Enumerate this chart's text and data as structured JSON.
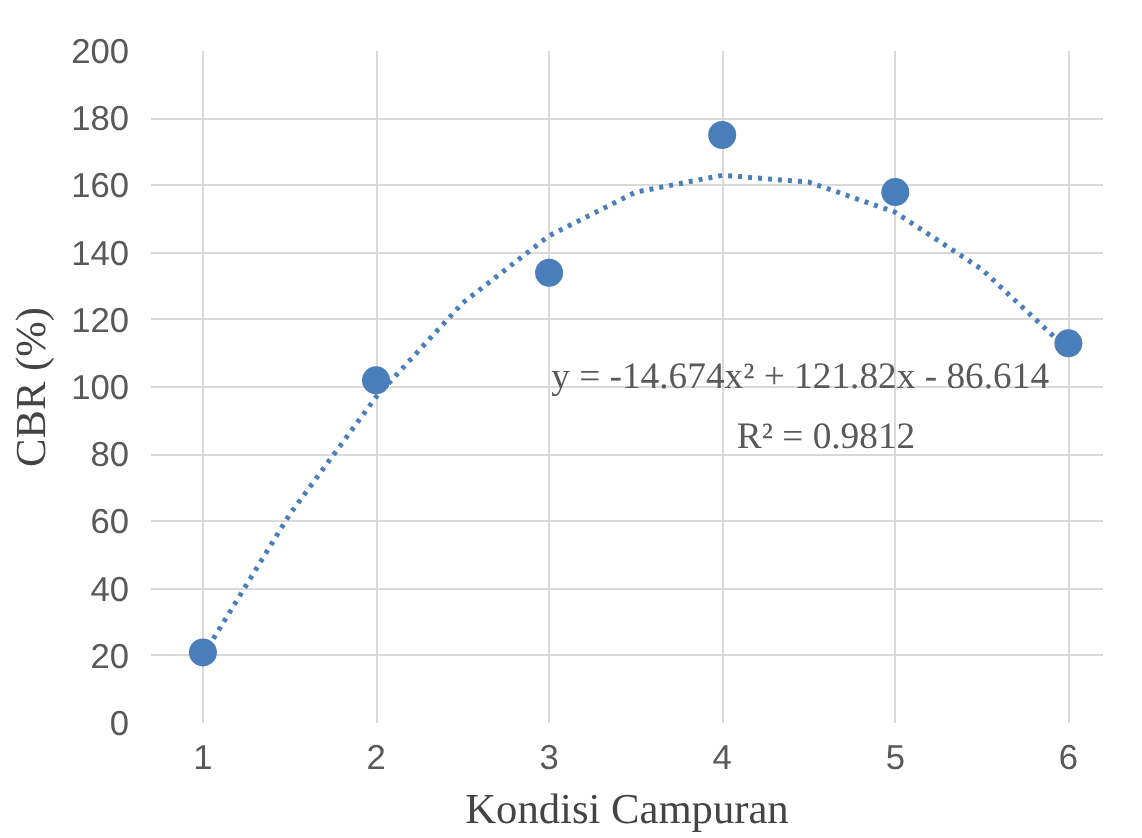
{
  "chart_data": {
    "type": "scatter",
    "xlabel": "Kondisi Campuran",
    "ylabel": "CBR (%)",
    "x": [
      1,
      2,
      3,
      4,
      5,
      6
    ],
    "series": [
      {
        "color": "#4a7ebb",
        "values": [
          21,
          102,
          134,
          175,
          158,
          113
        ],
        "marker": "circle"
      },
      {
        "type": "line",
        "color": "#4a7ebb",
        "line_style": "dotted",
        "marker": "none",
        "x": [
          1,
          1.5,
          2,
          2.5,
          3,
          3.5,
          4,
          4.5,
          5,
          5.5,
          6
        ],
        "values": [
          20,
          62,
          97,
          125,
          145,
          158,
          163,
          161,
          152,
          135,
          111
        ]
      }
    ],
    "annotations": [
      "y = -14.674x² + 121.82x - 86.614",
      "R² = 0.9812"
    ],
    "xlim": [
      0.7,
      6.2
    ],
    "xticks": [
      1,
      2,
      3,
      4,
      5,
      6
    ],
    "ylim": [
      0,
      200
    ],
    "yticks": [
      0,
      20,
      40,
      60,
      80,
      100,
      120,
      140,
      160,
      180,
      200
    ],
    "grid": true
  }
}
